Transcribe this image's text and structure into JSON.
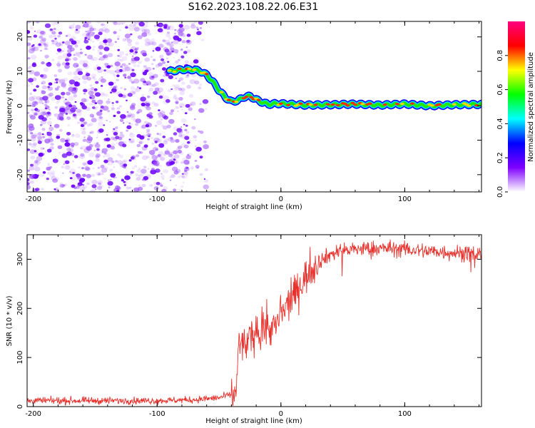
{
  "title": "S162.2023.108.22.06.E31",
  "chart_data": [
    {
      "type": "heatmap",
      "xlabel": "Height of straight line (km)",
      "ylabel": "Frequency (Hz)",
      "xlim": [
        -205,
        162
      ],
      "ylim": [
        -25,
        24.5
      ],
      "xticks": [
        -200,
        -100,
        0,
        100
      ],
      "yticks": [
        -20,
        -10,
        0,
        10,
        20
      ],
      "colorbar": {
        "label": "Normalized spectral amplitude",
        "range": [
          0,
          1
        ],
        "ticks": [
          "0.0",
          "0.2",
          "0.4",
          "0.6",
          "0.8"
        ],
        "colors": [
          "#ffffff",
          "#7f00ff",
          "#0000ff",
          "#00ffff",
          "#00ff00",
          "#ffff00",
          "#ff0000",
          "#ff007f"
        ]
      },
      "noise_region_x": [
        -205,
        -60
      ],
      "trace": {
        "x": [
          -90,
          -80,
          -70,
          -65,
          -60,
          -55,
          -50,
          -45,
          -40,
          -35,
          -30,
          -25,
          -20,
          -15,
          -10,
          -5,
          0,
          20,
          40,
          60,
          80,
          100,
          120,
          140,
          162
        ],
        "y": [
          10,
          10.5,
          10.5,
          10,
          9,
          7,
          4.5,
          2.5,
          1.2,
          1.5,
          2.5,
          2.8,
          1.8,
          1.0,
          0.4,
          0.6,
          0.6,
          0.2,
          0.3,
          0.5,
          0.2,
          0.5,
          0.0,
          0.3,
          0.4
        ]
      }
    },
    {
      "type": "line",
      "xlabel": "Height of straight line (km)",
      "ylabel": "SNR (10 * v/v)",
      "xlim": [
        -205,
        162
      ],
      "ylim": [
        0,
        350
      ],
      "xticks": [
        -200,
        -100,
        0,
        100
      ],
      "yticks": [
        0,
        100,
        200,
        300
      ],
      "color": "#e8312c",
      "series": [
        {
          "x": [
            -205,
            -150,
            -100,
            -70,
            -50,
            -40,
            -36,
            -34,
            -30,
            -25,
            -20,
            -15,
            -10,
            -5,
            0,
            10,
            20,
            30,
            40,
            50,
            70,
            90,
            110,
            130,
            150,
            162
          ],
          "y": [
            12,
            12,
            12,
            14,
            18,
            25,
            30,
            130,
            125,
            135,
            150,
            155,
            160,
            160,
            185,
            225,
            265,
            295,
            310,
            318,
            322,
            322,
            318,
            315,
            312,
            310
          ]
        }
      ]
    }
  ]
}
